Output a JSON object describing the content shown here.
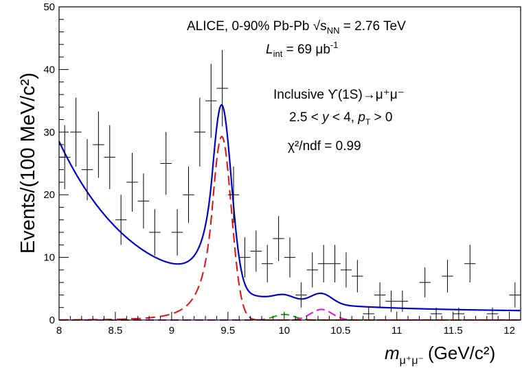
{
  "chart_data": {
    "type": "scatter",
    "xlabel": {
      "var": "m",
      "sub": "μ⁺μ⁻",
      "unit": "(GeV/c²)"
    },
    "ylabel": "Events/(100 MeV/c²)",
    "xlim": [
      8,
      12.1
    ],
    "ylim": [
      0,
      50
    ],
    "x_ticks": [
      "8",
      "8.5",
      "9",
      "9.5",
      "10",
      "10.5",
      "11",
      "11.5",
      "12"
    ],
    "y_ticks": [
      "0",
      "10",
      "20",
      "30",
      "40",
      "50"
    ],
    "grid": false,
    "legend": "none",
    "annotations": {
      "line1": "ALICE, 0-90% Pb-Pb √s",
      "line1_sub": "NN",
      "line1_tail": " = 2.76 TeV",
      "lumi_var": "L",
      "lumi_sub": "int",
      "lumi_val": " = 69 μb",
      "lumi_sup": "-1",
      "inclusive": "Inclusive ϒ(1S)→μ⁺μ⁻",
      "kinematics_a": "2.5 < ",
      "kinematics_y": "y",
      "kinematics_b": " < 4, ",
      "kinematics_p": "p",
      "kinematics_psub": "T",
      "kinematics_c": " > 0",
      "chi2": "χ²/ndf = 0.99"
    },
    "series": [
      {
        "kind": "data-points",
        "x": [
          8.05,
          8.15,
          8.25,
          8.35,
          8.45,
          8.55,
          8.65,
          8.75,
          8.85,
          8.95,
          9.05,
          9.15,
          9.25,
          9.35,
          9.45,
          9.55,
          9.65,
          9.75,
          9.85,
          9.95,
          10.05,
          10.15,
          10.25,
          10.35,
          10.45,
          10.55,
          10.65,
          10.75,
          10.85,
          10.95,
          11.05,
          11.15,
          11.25,
          11.35,
          11.45,
          11.55,
          11.65,
          11.75,
          11.85,
          11.95,
          12.05
        ],
        "y": [
          26,
          30,
          24,
          28,
          26,
          16,
          22,
          19,
          14,
          25,
          14,
          20,
          30,
          35,
          37,
          20,
          10,
          11,
          9,
          13,
          10,
          4,
          8,
          9,
          9,
          8,
          7,
          1,
          4,
          3,
          3,
          0,
          6,
          1,
          7,
          1,
          9,
          0,
          1,
          0,
          4
        ],
        "yerr": [
          5.1,
          5.5,
          4.9,
          5.3,
          5.1,
          4,
          4.7,
          4.4,
          3.7,
          5,
          3.7,
          4.5,
          5.5,
          5.9,
          6.1,
          4.5,
          3.2,
          3.3,
          3,
          3.6,
          3.2,
          2,
          2.8,
          3,
          3,
          2.8,
          2.6,
          1,
          2,
          1.7,
          1.7,
          0,
          2.4,
          1,
          2.6,
          1,
          3,
          0,
          1,
          0,
          2
        ],
        "color": "#000000"
      },
      {
        "kind": "fit-total",
        "style": "solid",
        "color": "#0000cc"
      },
      {
        "kind": "Y(1S) signal",
        "style": "dashed",
        "color": "#e01010"
      },
      {
        "kind": "Y(2S) signal",
        "style": "dashed",
        "color": "#e010e0"
      },
      {
        "kind": "Y(3S) signal",
        "style": "dashed",
        "color": "#10b010"
      }
    ]
  }
}
